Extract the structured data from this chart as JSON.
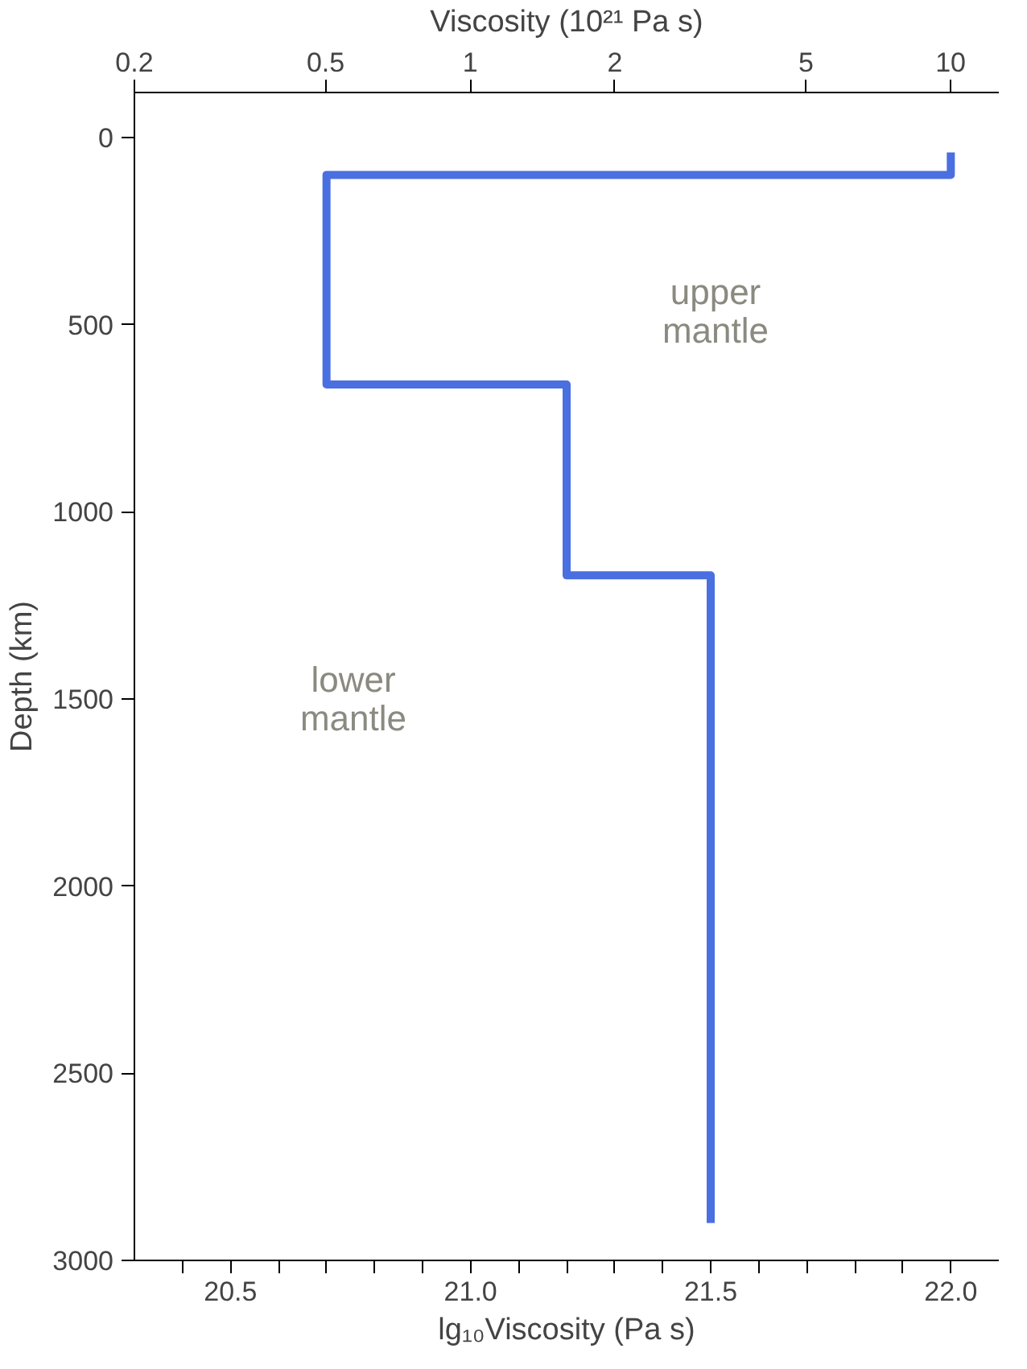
{
  "chart_data": {
    "type": "line",
    "xlabel": "lg₁₀Viscosity (Pa s)",
    "ylabel": "Depth (km)",
    "x2label": "Viscosity (10²¹ Pa s)",
    "xlim": [
      20.3,
      22.1
    ],
    "ylim": [
      3000,
      -120
    ],
    "x2lim": [
      0.2,
      12.6
    ],
    "xticks": [
      {
        "value": 20.4,
        "label": null
      },
      20.5,
      {
        "value": 20.6,
        "label": null
      },
      {
        "value": 20.7,
        "label": null
      },
      {
        "value": 20.8,
        "label": null
      },
      {
        "value": 20.9,
        "label": null
      },
      {
        "value": 21.0,
        "label": "21.0"
      },
      {
        "value": 21.1,
        "label": null
      },
      {
        "value": 21.2,
        "label": null
      },
      {
        "value": 21.3,
        "label": null
      },
      {
        "value": 21.4,
        "label": null
      },
      21.5,
      {
        "value": 21.6,
        "label": null
      },
      {
        "value": 21.7,
        "label": null
      },
      {
        "value": 21.8,
        "label": null
      },
      {
        "value": 21.9,
        "label": null
      },
      {
        "value": 22.0,
        "label": "22.0"
      }
    ],
    "x2ticks": [
      0.2,
      0.5,
      1,
      2,
      5,
      10
    ],
    "log": "x2",
    "yticks": [
      0,
      500,
      1000,
      1500,
      2000,
      2500,
      3000
    ],
    "grid": false,
    "marker": "none",
    "line_style": "solid",
    "series": [
      {
        "color": "#4a6fe0",
        "x": [
          22.0,
          22.0,
          20.7,
          20.7,
          21.2,
          21.2,
          21.5,
          21.5
        ],
        "values": [
          40,
          100,
          100,
          660,
          660,
          1170,
          1170,
          2900
        ]
      }
    ],
    "annotations": [
      "upper\nmantle",
      "lower\nmantle"
    ]
  }
}
